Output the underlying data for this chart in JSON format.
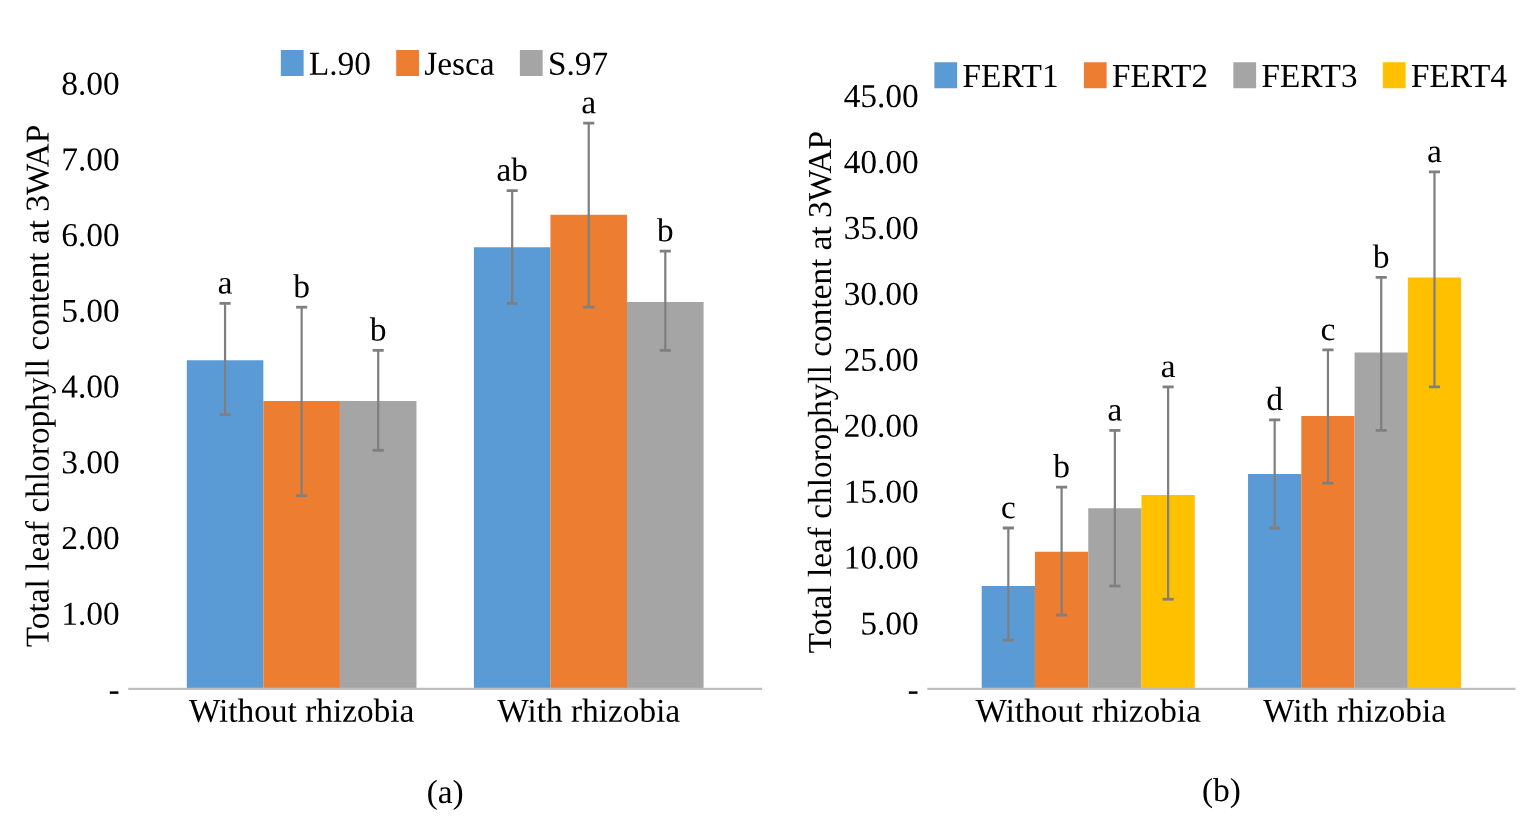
{
  "chart_data": [
    {
      "type": "bar",
      "categories": [
        "Without rhizobia",
        "With rhizobia"
      ],
      "ylabel": "Total leaf chlorophyll content at 3WAP",
      "ylim": [
        0,
        8
      ],
      "yticks": [
        {
          "value": 0,
          "label": "-"
        },
        {
          "value": 1,
          "label": "1.00"
        },
        {
          "value": 2,
          "label": "2.00"
        },
        {
          "value": 3,
          "label": "3.00"
        },
        {
          "value": 4,
          "label": "4.00"
        },
        {
          "value": 5,
          "label": "5.00"
        },
        {
          "value": 6,
          "label": "6.00"
        },
        {
          "value": 7,
          "label": "7.00"
        },
        {
          "value": 8,
          "label": "8.00"
        }
      ],
      "grid": false,
      "legend": "top",
      "series": [
        {
          "name": "L.90",
          "color": "#5b9bd5",
          "values": [
            4.34,
            5.83
          ],
          "errors": [
            [
              3.62,
              5.09
            ],
            [
              5.09,
              6.58
            ]
          ]
        },
        {
          "name": "Jesca",
          "color": "#ed7d31",
          "values": [
            3.8,
            6.26
          ],
          "errors": [
            [
              2.55,
              5.04
            ],
            [
              5.04,
              7.47
            ]
          ]
        },
        {
          "name": "S.97",
          "color": "#a5a5a5",
          "values": [
            3.8,
            5.11
          ],
          "errors": [
            [
              3.15,
              4.47
            ],
            [
              4.47,
              5.78
            ]
          ]
        }
      ],
      "annotations": [
        "a",
        "b",
        "b",
        "ab",
        "a",
        "b",
        "(a)"
      ]
    },
    {
      "type": "bar",
      "categories": [
        "Without rhizobia",
        "With rhizobia"
      ],
      "ylabel": "Total leaf chlorophyll content at 3WAP",
      "ylim": [
        0,
        45
      ],
      "yticks": [
        {
          "value": 0,
          "label": "-"
        },
        {
          "value": 5,
          "label": "5.00"
        },
        {
          "value": 10,
          "label": "10.00"
        },
        {
          "value": 15,
          "label": "15.00"
        },
        {
          "value": 20,
          "label": "20.00"
        },
        {
          "value": 25,
          "label": "25.00"
        },
        {
          "value": 30,
          "label": "30.00"
        },
        {
          "value": 35,
          "label": "35.00"
        },
        {
          "value": 40,
          "label": "40.00"
        },
        {
          "value": 45,
          "label": "45.00"
        }
      ],
      "grid": false,
      "legend": "top",
      "series": [
        {
          "name": "FERT1",
          "color": "#5b9bd5",
          "values": [
            7.8,
            16.3
          ],
          "errors": [
            [
              3.7,
              12.2
            ],
            [
              12.2,
              20.4
            ]
          ]
        },
        {
          "name": "FERT2",
          "color": "#ed7d31",
          "values": [
            10.4,
            20.7
          ],
          "errors": [
            [
              5.6,
              15.3
            ],
            [
              15.6,
              25.7
            ]
          ]
        },
        {
          "name": "FERT3",
          "color": "#a5a5a5",
          "values": [
            13.7,
            25.5
          ],
          "errors": [
            [
              7.8,
              19.6
            ],
            [
              19.6,
              31.2
            ]
          ]
        },
        {
          "name": "FERT4",
          "color": "#ffc000",
          "values": [
            14.7,
            31.2
          ],
          "errors": [
            [
              6.8,
              22.9
            ],
            [
              22.9,
              39.2
            ]
          ]
        }
      ],
      "annotations": [
        "c",
        "b",
        "a",
        "a",
        "d",
        "c",
        "b",
        "a",
        "(b)"
      ]
    }
  ]
}
